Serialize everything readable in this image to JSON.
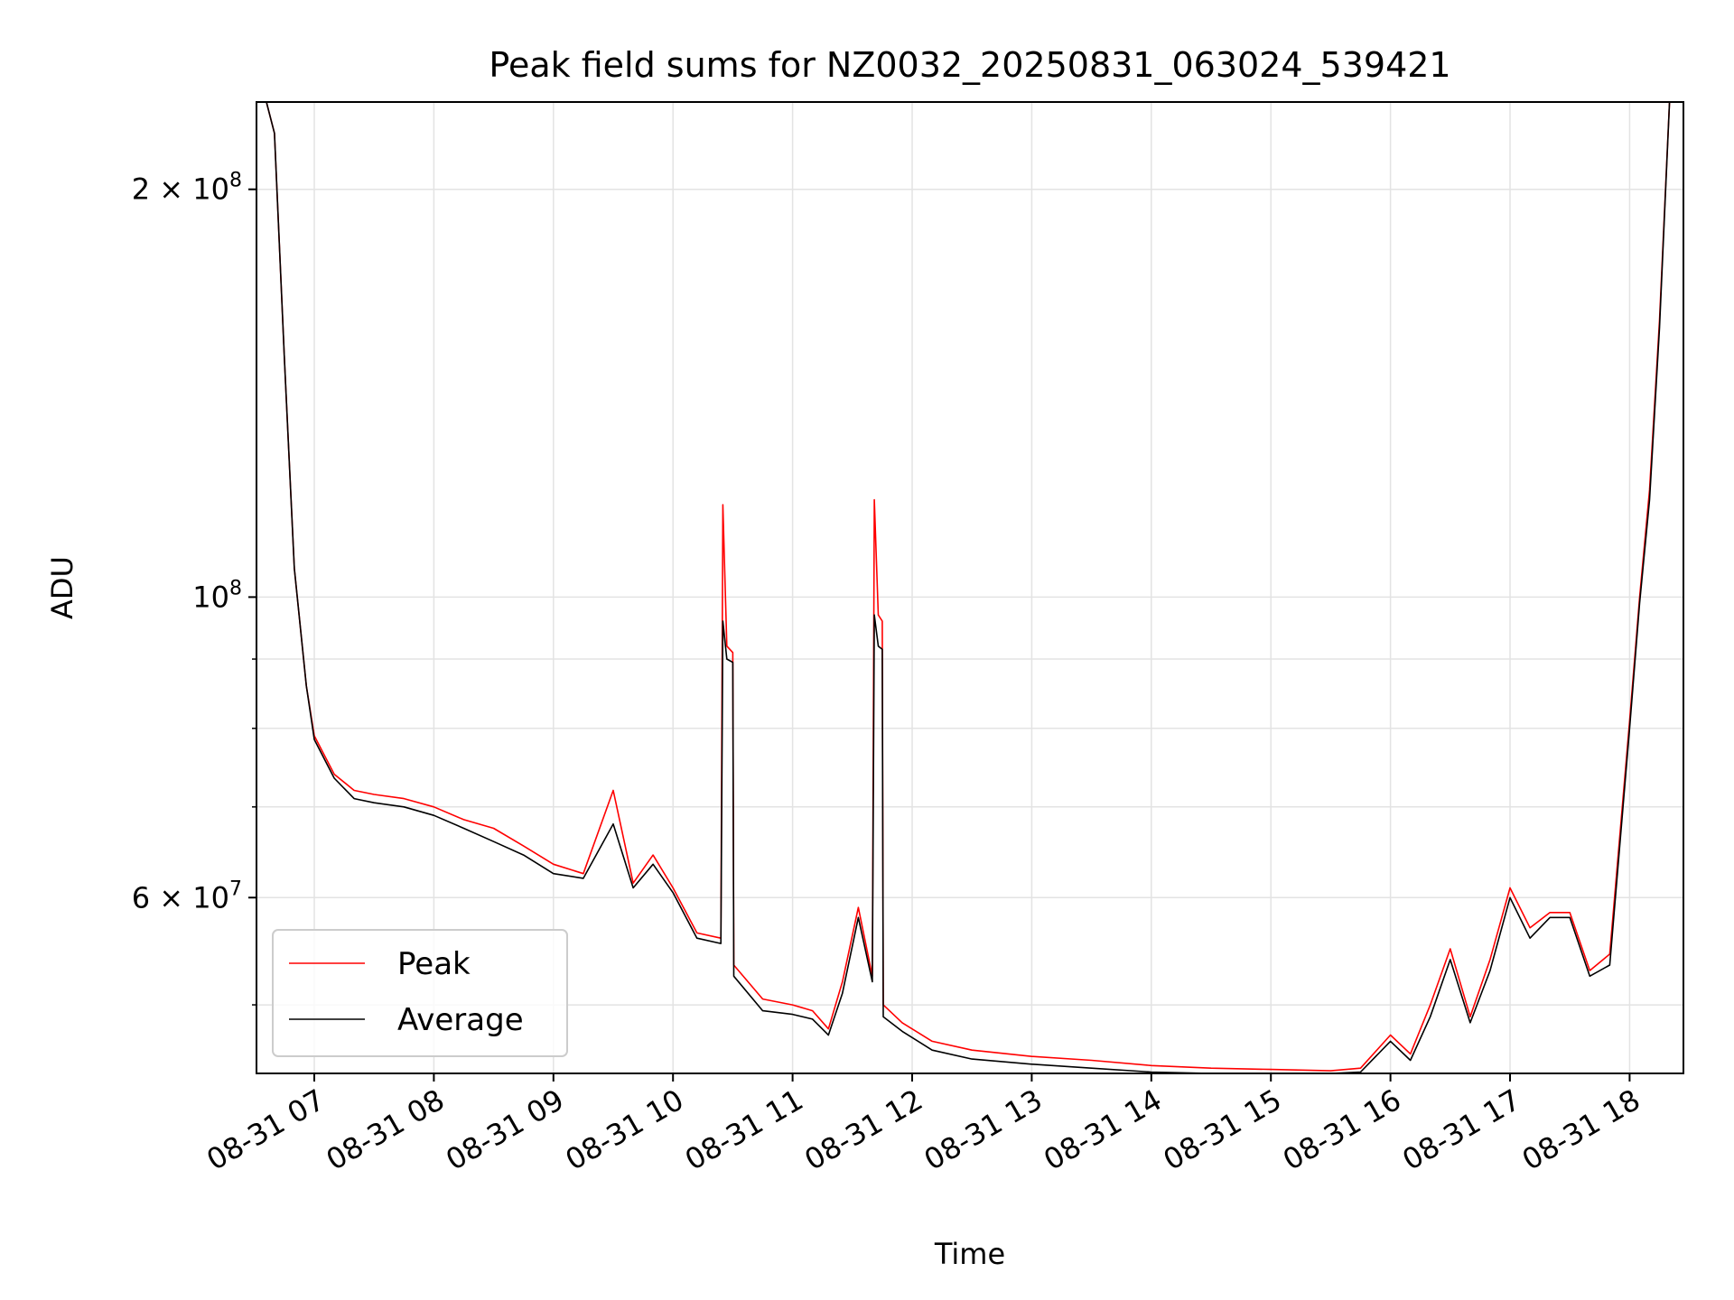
{
  "chart_data": {
    "type": "line",
    "title": "Peak field sums for NZ0032_20250831_063024_539421",
    "xlabel": "Time",
    "ylabel": "ADU",
    "yscale": "log",
    "grid": true,
    "legend_position": "lower-left",
    "xlim": [
      "2025-08-31 06:31",
      "2025-08-31 18:27"
    ],
    "ylim": [
      44500000,
      232000000
    ],
    "x_ticks": [
      "08-31 07",
      "08-31 08",
      "08-31 09",
      "08-31 10",
      "08-31 11",
      "08-31 12",
      "08-31 13",
      "08-31 14",
      "08-31 15",
      "08-31 16",
      "08-31 17",
      "08-31 18"
    ],
    "y_ticks": [
      {
        "value": 60000000,
        "mantissa": "6",
        "exponent": "7"
      },
      {
        "value": 100000000,
        "mantissa": "",
        "exponent": "8"
      },
      {
        "value": 200000000,
        "mantissa": "2",
        "exponent": "8"
      }
    ],
    "y_minor_ticks": [
      50000000,
      70000000,
      80000000,
      90000000
    ],
    "series": [
      {
        "name": "Peak",
        "color": "#ff0000",
        "x": [
          "06:31",
          "06:36",
          "06:40",
          "06:45",
          "06:50",
          "06:56",
          "07:00",
          "07:10",
          "07:20",
          "07:30",
          "07:45",
          "08:00",
          "08:15",
          "08:30",
          "08:45",
          "09:00",
          "09:15",
          "09:30",
          "09:40",
          "09:50",
          "10:00",
          "10:12",
          "10:24",
          "10:25",
          "10:27",
          "10:30",
          "10:30.5",
          "10:45",
          "11:00",
          "11:10",
          "11:18",
          "11:25",
          "11:33",
          "11:40",
          "11:41",
          "11:43",
          "11:45",
          "11:45.5",
          "11:55",
          "12:10",
          "12:30",
          "13:00",
          "13:30",
          "14:00",
          "14:30",
          "15:00",
          "15:30",
          "15:45",
          "16:00",
          "16:10",
          "16:20",
          "16:30",
          "16:40",
          "16:50",
          "17:00",
          "17:10",
          "17:20",
          "17:30",
          "17:40",
          "17:50",
          "18:00",
          "18:05",
          "18:10",
          "18:15",
          "18:20",
          "18:27"
        ],
        "y": [
          232000000,
          232000000,
          220000000,
          150000000,
          105000000,
          86000000,
          79000000,
          74000000,
          72000000,
          71500000,
          71000000,
          70000000,
          68500000,
          67500000,
          65500000,
          63500000,
          62500000,
          72000000,
          61500000,
          64500000,
          61000000,
          56500000,
          56000000,
          117000000,
          92000000,
          91000000,
          53500000,
          50500000,
          50000000,
          49500000,
          48000000,
          52000000,
          59000000,
          52500000,
          118000000,
          97000000,
          96000000,
          50000000,
          48500000,
          47000000,
          46300000,
          45800000,
          45500000,
          45100000,
          44900000,
          44800000,
          44700000,
          44900000,
          47500000,
          46000000,
          50000000,
          55000000,
          49000000,
          54000000,
          61000000,
          57000000,
          58500000,
          58500000,
          53000000,
          54500000,
          81000000,
          100000000,
          120000000,
          160000000,
          232000000,
          232000000
        ]
      },
      {
        "name": "Average",
        "color": "#000000",
        "x": [
          "06:31",
          "06:36",
          "06:40",
          "06:45",
          "06:50",
          "06:56",
          "07:00",
          "07:10",
          "07:20",
          "07:30",
          "07:45",
          "08:00",
          "08:15",
          "08:30",
          "08:45",
          "09:00",
          "09:15",
          "09:30",
          "09:40",
          "09:50",
          "10:00",
          "10:12",
          "10:24",
          "10:25",
          "10:27",
          "10:30",
          "10:30.5",
          "10:45",
          "11:00",
          "11:10",
          "11:18",
          "11:25",
          "11:33",
          "11:40",
          "11:41",
          "11:43",
          "11:45",
          "11:45.5",
          "11:55",
          "12:10",
          "12:30",
          "13:00",
          "13:30",
          "14:00",
          "14:30",
          "15:00",
          "15:30",
          "15:45",
          "16:00",
          "16:10",
          "16:20",
          "16:30",
          "16:40",
          "16:50",
          "17:00",
          "17:10",
          "17:20",
          "17:30",
          "17:40",
          "17:50",
          "18:00",
          "18:05",
          "18:10",
          "18:15",
          "18:20",
          "18:27"
        ],
        "y": [
          232000000,
          232000000,
          220000000,
          150000000,
          105000000,
          86000000,
          78500000,
          73500000,
          71000000,
          70500000,
          70000000,
          69000000,
          67500000,
          66000000,
          64500000,
          62500000,
          62000000,
          68000000,
          61000000,
          63500000,
          60500000,
          56000000,
          55500000,
          96000000,
          90000000,
          89500000,
          52500000,
          49500000,
          49200000,
          48800000,
          47500000,
          51000000,
          58000000,
          52000000,
          97000000,
          92000000,
          91500000,
          49000000,
          47800000,
          46300000,
          45600000,
          45200000,
          44900000,
          44600000,
          44500000,
          44500000,
          44500000,
          44600000,
          47000000,
          45500000,
          49000000,
          54000000,
          48500000,
          53000000,
          60000000,
          56000000,
          58000000,
          58000000,
          52500000,
          53500000,
          80000000,
          99000000,
          118000000,
          158000000,
          232000000,
          232000000
        ]
      }
    ]
  }
}
